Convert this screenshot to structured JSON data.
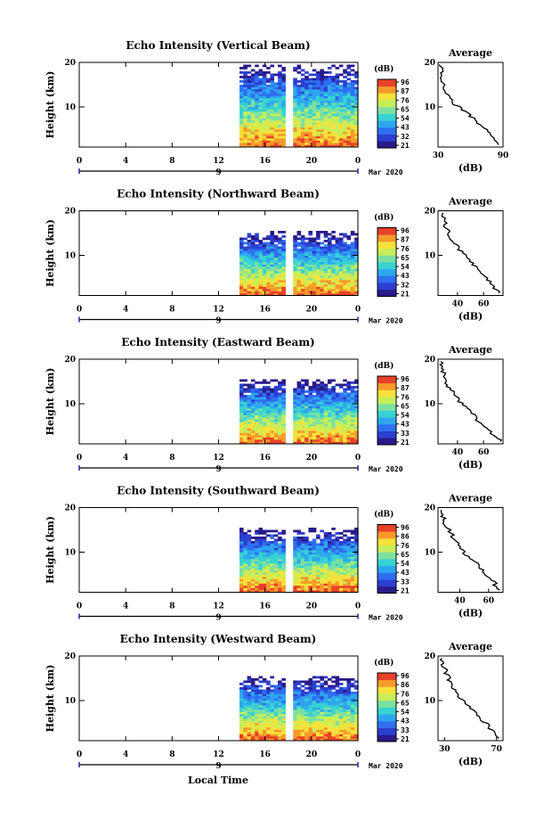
{
  "figure": {
    "time_axis_label": "Local Time",
    "date_label": "Mar 2020",
    "day_label": "9"
  },
  "colormap": [
    "#2a1a8a",
    "#2b3fd0",
    "#2f6ff0",
    "#2ea6ee",
    "#37d2d2",
    "#7de0a0",
    "#c6ee5a",
    "#f4e23a",
    "#f79a2c",
    "#e8412a"
  ],
  "chart_data": [
    {
      "type": "heatmap",
      "title": "Echo Intensity (Vertical Beam)",
      "xlabel": "Local Time",
      "ylabel": "Height (km)",
      "colorbar_label": "(dB)",
      "x_ticks": [
        "0",
        "4",
        "8",
        "12",
        "16",
        "20",
        "0"
      ],
      "xlim": [
        0,
        24
      ],
      "y_ticks": [
        "10",
        "20"
      ],
      "ylim": [
        1,
        20
      ],
      "colorbar_ticks": [
        "96",
        "87",
        "76",
        "65",
        "54",
        "43",
        "32",
        "21"
      ],
      "data_start_hour": 13.8,
      "data_gap_hours": [
        17.8,
        18.3
      ],
      "echo_top_km": 19.5,
      "average_profile": {
        "title": "Average",
        "xlabel": "(dB)",
        "x_ticks": [
          "30",
          "90"
        ],
        "xlim": [
          30,
          90
        ],
        "y_ticks": [
          "10",
          "20"
        ],
        "ylim": [
          1,
          20
        ],
        "height_km": [
          1.5,
          3,
          4.5,
          6,
          7.5,
          9,
          10.5,
          12,
          13.5,
          15,
          16.5,
          18,
          19.5
        ],
        "db": [
          86,
          80,
          76,
          68,
          62,
          55,
          46,
          42,
          36,
          37,
          32,
          34,
          31
        ]
      }
    },
    {
      "type": "heatmap",
      "title": "Echo Intensity (Northward Beam)",
      "xlabel": "Local Time",
      "ylabel": "Height (km)",
      "colorbar_label": "(dB)",
      "x_ticks": [
        "0",
        "4",
        "8",
        "12",
        "16",
        "20",
        "0"
      ],
      "xlim": [
        0,
        24
      ],
      "y_ticks": [
        "10",
        "20"
      ],
      "ylim": [
        1,
        20
      ],
      "colorbar_ticks": [
        "96",
        "87",
        "76",
        "65",
        "54",
        "43",
        "32",
        "21"
      ],
      "data_start_hour": 13.8,
      "data_gap_hours": [
        17.8,
        18.3
      ],
      "echo_top_km": 15.5,
      "average_profile": {
        "title": "Average",
        "xlabel": "(dB)",
        "x_ticks": [
          "40",
          "60"
        ],
        "xlim": [
          25,
          75
        ],
        "y_ticks": [
          "10",
          "20"
        ],
        "ylim": [
          1,
          20
        ],
        "height_km": [
          1.5,
          3,
          4.5,
          6,
          7.5,
          9,
          10.5,
          12,
          13.5,
          15,
          16.5,
          18,
          19.5
        ],
        "db": [
          72,
          68,
          64,
          58,
          53,
          49,
          44,
          40,
          36,
          33,
          31,
          30,
          29
        ]
      }
    },
    {
      "type": "heatmap",
      "title": "Echo Intensity (Eastward Beam)",
      "xlabel": "Local Time",
      "ylabel": "Height (km)",
      "colorbar_label": "(dB)",
      "x_ticks": [
        "0",
        "4",
        "8",
        "12",
        "16",
        "20",
        "0"
      ],
      "xlim": [
        0,
        24
      ],
      "y_ticks": [
        "10",
        "20"
      ],
      "ylim": [
        1,
        20
      ],
      "colorbar_ticks": [
        "96",
        "87",
        "76",
        "65",
        "54",
        "43",
        "33",
        "21"
      ],
      "data_start_hour": 13.8,
      "data_gap_hours": [
        17.8,
        18.3
      ],
      "echo_top_km": 15.5,
      "average_profile": {
        "title": "Average",
        "xlabel": "(dB)",
        "x_ticks": [
          "40",
          "60"
        ],
        "xlim": [
          25,
          75
        ],
        "y_ticks": [
          "10",
          "20"
        ],
        "ylim": [
          1,
          20
        ],
        "height_km": [
          1.5,
          3,
          4.5,
          6,
          7.5,
          9,
          10.5,
          12,
          13.5,
          15,
          16.5,
          18,
          19.5
        ],
        "db": [
          73,
          68,
          62,
          57,
          52,
          47,
          42,
          38,
          34,
          31,
          30,
          28,
          27
        ]
      }
    },
    {
      "type": "heatmap",
      "title": "Echo Intensity (Southward Beam)",
      "xlabel": "Local Time",
      "ylabel": "Height (km)",
      "colorbar_label": "(dB)",
      "x_ticks": [
        "0",
        "4",
        "8",
        "12",
        "16",
        "20",
        "0"
      ],
      "xlim": [
        0,
        24
      ],
      "y_ticks": [
        "10",
        "20"
      ],
      "ylim": [
        1,
        20
      ],
      "colorbar_ticks": [
        "96",
        "86",
        "76",
        "65",
        "54",
        "43",
        "33",
        "21"
      ],
      "data_start_hour": 13.8,
      "data_gap_hours": [
        17.8,
        18.3
      ],
      "echo_top_km": 15.5,
      "average_profile": {
        "title": "Average",
        "xlabel": "(dB)",
        "x_ticks": [
          "40",
          "60"
        ],
        "xlim": [
          25,
          70
        ],
        "y_ticks": [
          "10",
          "20"
        ],
        "ylim": [
          1,
          20
        ],
        "height_km": [
          1.5,
          3,
          4.5,
          6,
          7.5,
          9,
          10.5,
          12,
          13.5,
          15,
          16.5,
          18,
          19.5
        ],
        "db": [
          68,
          64,
          60,
          55,
          51,
          46,
          42,
          38,
          35,
          33,
          30,
          28,
          27
        ]
      }
    },
    {
      "type": "heatmap",
      "title": "Echo Intensity (Westward Beam)",
      "xlabel": "Local Time",
      "ylabel": "Height (km)",
      "colorbar_label": "(dB)",
      "x_ticks": [
        "0",
        "4",
        "8",
        "12",
        "16",
        "20",
        "0"
      ],
      "xlim": [
        0,
        24
      ],
      "y_ticks": [
        "10",
        "20"
      ],
      "ylim": [
        1,
        20
      ],
      "colorbar_ticks": [
        "96",
        "86",
        "76",
        "65",
        "54",
        "43",
        "33",
        "21"
      ],
      "data_start_hour": 13.8,
      "data_gap_hours": [
        17.8,
        18.3
      ],
      "echo_top_km": 15.5,
      "average_profile": {
        "title": "Average",
        "xlabel": "(dB)",
        "x_ticks": [
          "30",
          "70"
        ],
        "xlim": [
          25,
          75
        ],
        "y_ticks": [
          "10",
          "20"
        ],
        "ylim": [
          1,
          20
        ],
        "height_km": [
          1.5,
          3,
          4.5,
          6,
          7.5,
          9,
          10.5,
          12,
          13.5,
          15,
          16.5,
          18,
          19.5
        ],
        "db": [
          72,
          68,
          63,
          57,
          52,
          47,
          43,
          39,
          35,
          33,
          31,
          29,
          28
        ]
      }
    }
  ]
}
